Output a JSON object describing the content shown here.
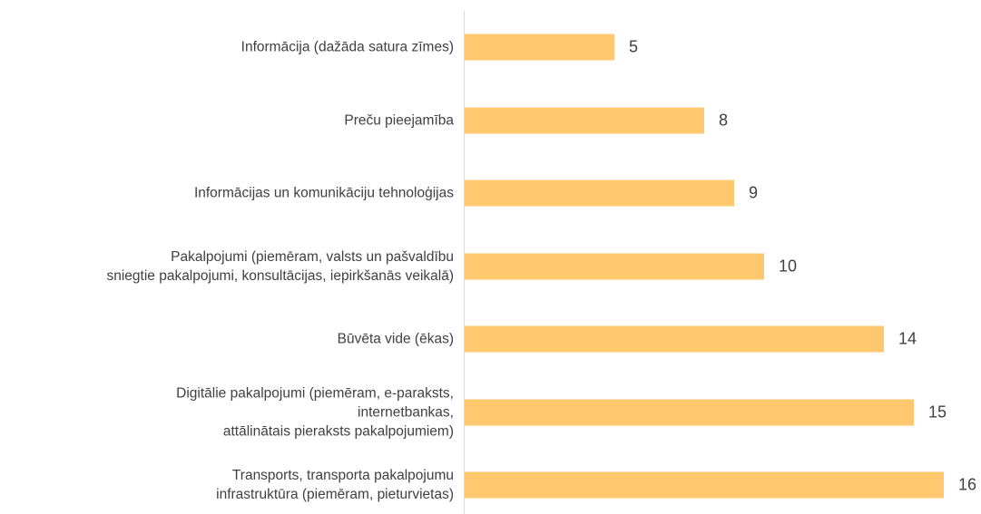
{
  "chart_data": {
    "type": "bar",
    "orientation": "horizontal",
    "color": "#ffc76e",
    "categories": [
      "Informācija (dažāda satura zīmes)",
      "Preču pieejamība",
      "Informācijas un komunikāciju tehnoloģijas",
      "Pakalpojumi (piemēram, valsts un pašvaldību\nsniegtie pakalpojumi, konsultācijas, iepirkšanās veikalā)",
      "Būvēta vide (ēkas)",
      "Digitālie pakalpojumi (piemēram, e-paraksts,\ninternetbankas,\nattālinātais pieraksts pakalpojumiem)",
      "Transports, transporta pakalpojumu\ninfrastruktūra (piemēram, pieturvietas)"
    ],
    "values": [
      5,
      8,
      9,
      10,
      14,
      15,
      16
    ]
  }
}
